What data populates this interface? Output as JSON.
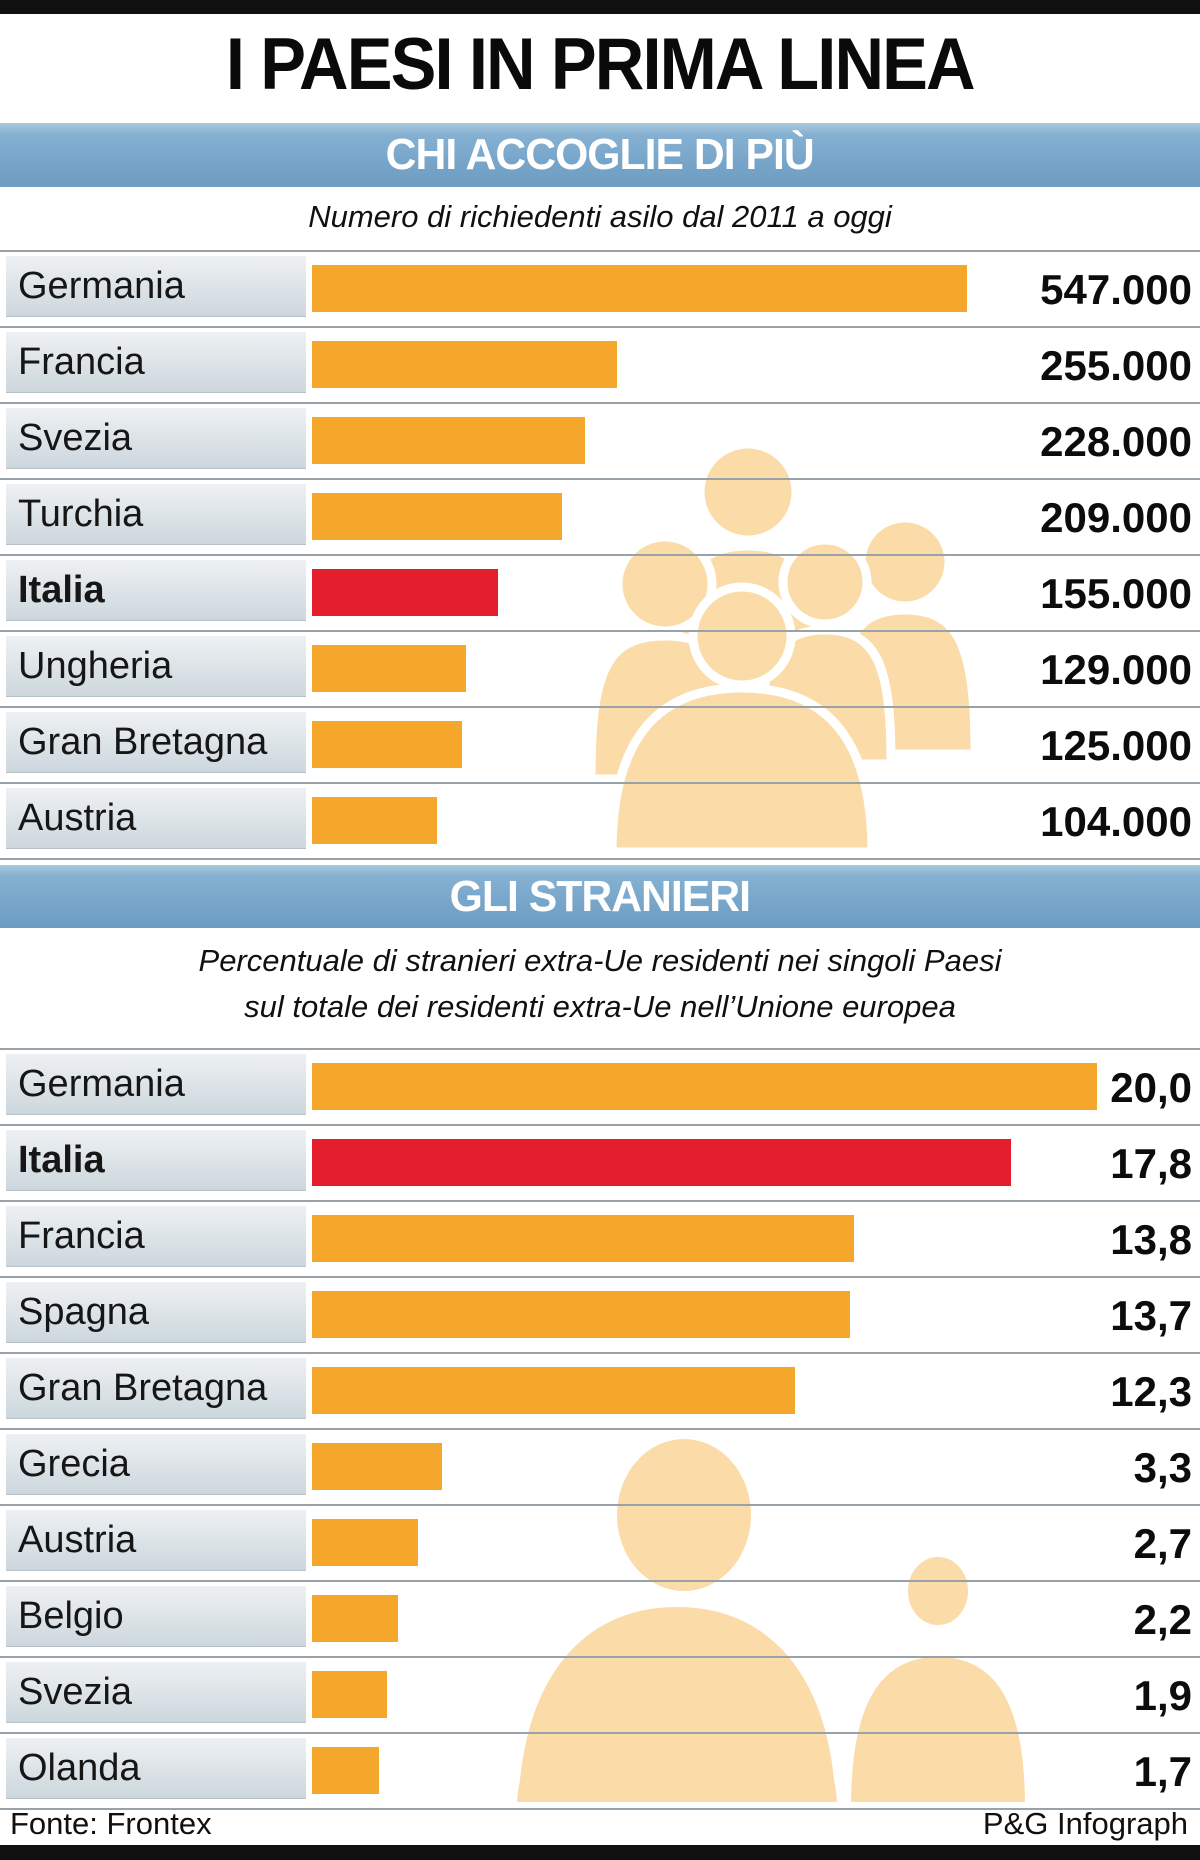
{
  "header": {
    "title": "I PAESI IN PRIMA LINEA"
  },
  "colors": {
    "bar_orange": "#F5A72B",
    "bar_red": "#E41E2C",
    "band_blue": "#79A7CB",
    "people_fill": "#FBDCA8"
  },
  "chart_data": [
    {
      "type": "bar",
      "orientation": "horizontal",
      "title": "CHI ACCOGLIE DI PIÙ",
      "subtitle": "Numero di richiedenti asilo dal 2011 a oggi",
      "categories": [
        "Germania",
        "Francia",
        "Svezia",
        "Turchia",
        "Italia",
        "Ungheria",
        "Gran Bretagna",
        "Austria"
      ],
      "values": [
        547000,
        255000,
        228000,
        209000,
        155000,
        129000,
        125000,
        104000
      ],
      "value_labels": [
        "547.000",
        "255.000",
        "228.000",
        "209.000",
        "155.000",
        "129.000",
        "125.000",
        "104.000"
      ],
      "highlight_category": "Italia",
      "xlim": [
        0,
        547000
      ],
      "legend": "none",
      "grid": "row-separators"
    },
    {
      "type": "bar",
      "orientation": "horizontal",
      "title": "GLI STRANIERI",
      "subtitle_lines": [
        "Percentuale di stranieri extra-Ue residenti nei singoli Paesi",
        "sul totale dei residenti extra-Ue nell’Unione europea"
      ],
      "categories": [
        "Germania",
        "Italia",
        "Francia",
        "Spagna",
        "Gran Bretagna",
        "Grecia",
        "Austria",
        "Belgio",
        "Svezia",
        "Olanda"
      ],
      "values": [
        20.0,
        17.8,
        13.8,
        13.7,
        12.3,
        3.3,
        2.7,
        2.2,
        1.9,
        1.7
      ],
      "value_labels": [
        "20,0",
        "17,8",
        "13,8",
        "13,7",
        "12,3",
        "3,3",
        "2,7",
        "2,2",
        "1,9",
        "1,7"
      ],
      "highlight_category": "Italia",
      "xlim": [
        0,
        20
      ],
      "legend": "none",
      "grid": "row-separators"
    }
  ],
  "footer": {
    "source": "Fonte: Frontex",
    "credit": "P&G Infograph"
  }
}
